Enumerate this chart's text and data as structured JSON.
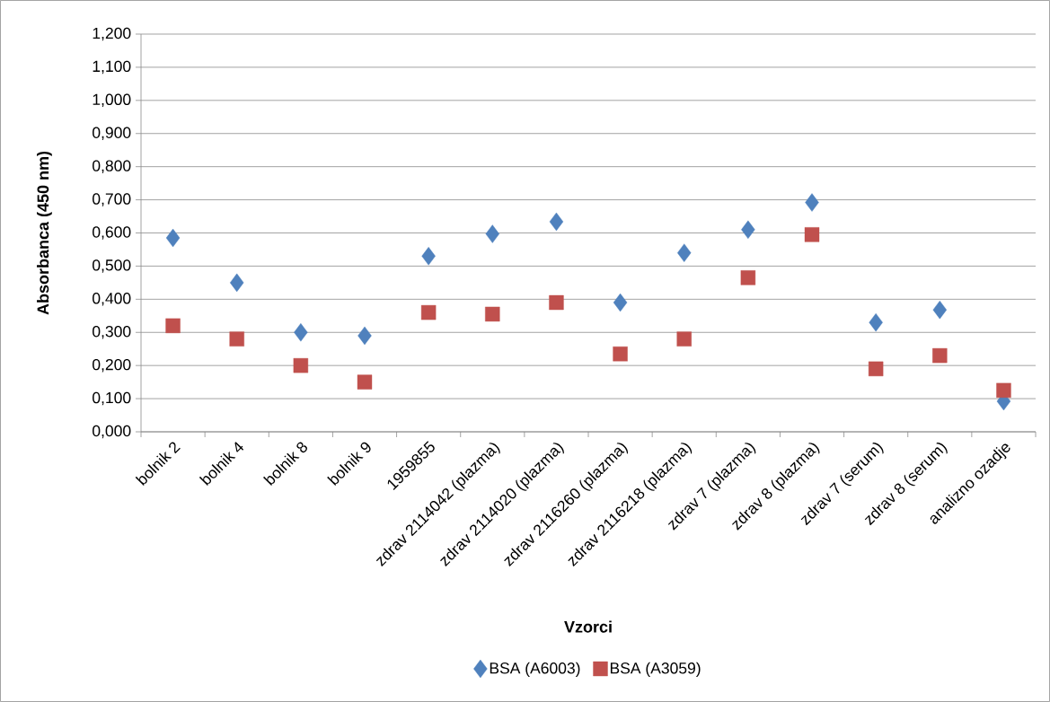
{
  "chart_data": {
    "type": "scatter",
    "xlabel": "Vzorci",
    "ylabel": "Absorbanca (450 nm)",
    "categories": [
      "bolnik 2",
      "bolnik 4",
      "bolnik 8",
      "bolnik 9",
      "1959855",
      "zdrav 2114042 (plazma)",
      "zdrav 2114020 (plazma)",
      "zdrav 2116260 (plazma)",
      "zdrav 2116218 (plazma)",
      "zdrav 7 (plazma)",
      "zdrav 8 (plazma)",
      "zdrav 7 (serum)",
      "zdrav 8 (serum)",
      "analizno ozadje"
    ],
    "series": [
      {
        "name": "BSA (A6003)",
        "color": "#4f81bd",
        "marker": "diamond",
        "values": [
          0.585,
          0.45,
          0.3,
          0.29,
          0.53,
          0.597,
          0.634,
          0.39,
          0.54,
          0.61,
          0.692,
          0.33,
          0.368,
          0.092
        ]
      },
      {
        "name": "BSA (A3059)",
        "color": "#c0504d",
        "marker": "square",
        "values": [
          0.32,
          0.28,
          0.2,
          0.15,
          0.36,
          0.355,
          0.39,
          0.235,
          0.28,
          0.465,
          0.595,
          0.19,
          0.23,
          0.125
        ]
      }
    ],
    "ylim": [
      0,
      1.2
    ],
    "yticks": [
      {
        "value": 0,
        "label": "0,000"
      },
      {
        "value": 0.1,
        "label": "0,100"
      },
      {
        "value": 0.2,
        "label": "0,200"
      },
      {
        "value": 0.3,
        "label": "0,300"
      },
      {
        "value": 0.4,
        "label": "0,400"
      },
      {
        "value": 0.5,
        "label": "0,500"
      },
      {
        "value": 0.6,
        "label": "0,600"
      },
      {
        "value": 0.7,
        "label": "0,700"
      },
      {
        "value": 0.8,
        "label": "0,800"
      },
      {
        "value": 0.9,
        "label": "0,900"
      },
      {
        "value": 1.0,
        "label": "1,000"
      },
      {
        "value": 1.1,
        "label": "1,100"
      },
      {
        "value": 1.2,
        "label": "1,200"
      }
    ],
    "grid": "y",
    "legend": "bottom"
  }
}
